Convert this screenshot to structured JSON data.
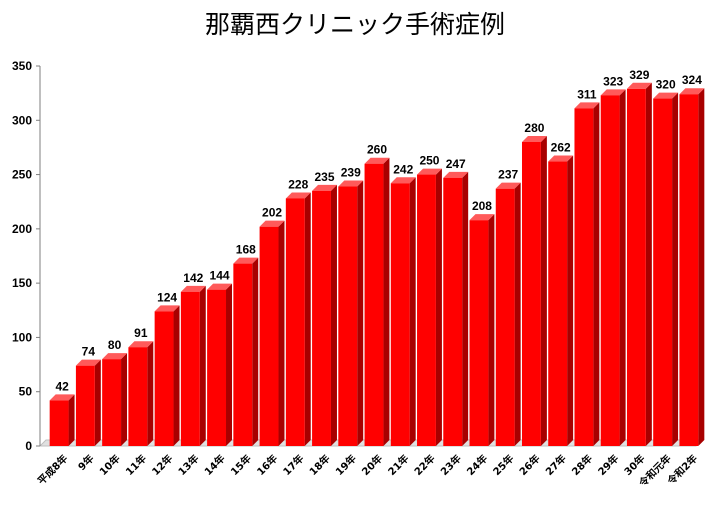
{
  "chart_data": {
    "type": "bar",
    "title": "那覇西クリニック手術症例",
    "categories": [
      "平成8年",
      "9年",
      "10年",
      "11年",
      "12年",
      "13年",
      "14年",
      "15年",
      "16年",
      "17年",
      "18年",
      "19年",
      "20年",
      "21年",
      "22年",
      "23年",
      "24年",
      "25年",
      "26年",
      "27年",
      "28年",
      "29年",
      "30年",
      "令和元年",
      "令和2年"
    ],
    "values": [
      42,
      74,
      80,
      91,
      124,
      142,
      144,
      168,
      202,
      228,
      235,
      239,
      260,
      242,
      250,
      247,
      208,
      237,
      280,
      262,
      311,
      323,
      329,
      320,
      324
    ],
    "ylim": [
      0,
      350
    ],
    "yticks": [
      0,
      50,
      100,
      150,
      200,
      250,
      300,
      350
    ],
    "grid": false,
    "legend": "none",
    "bar_color": "#ff0000",
    "bar_side_color": "#a80000",
    "bar_top_color": "#ff5a5a"
  }
}
